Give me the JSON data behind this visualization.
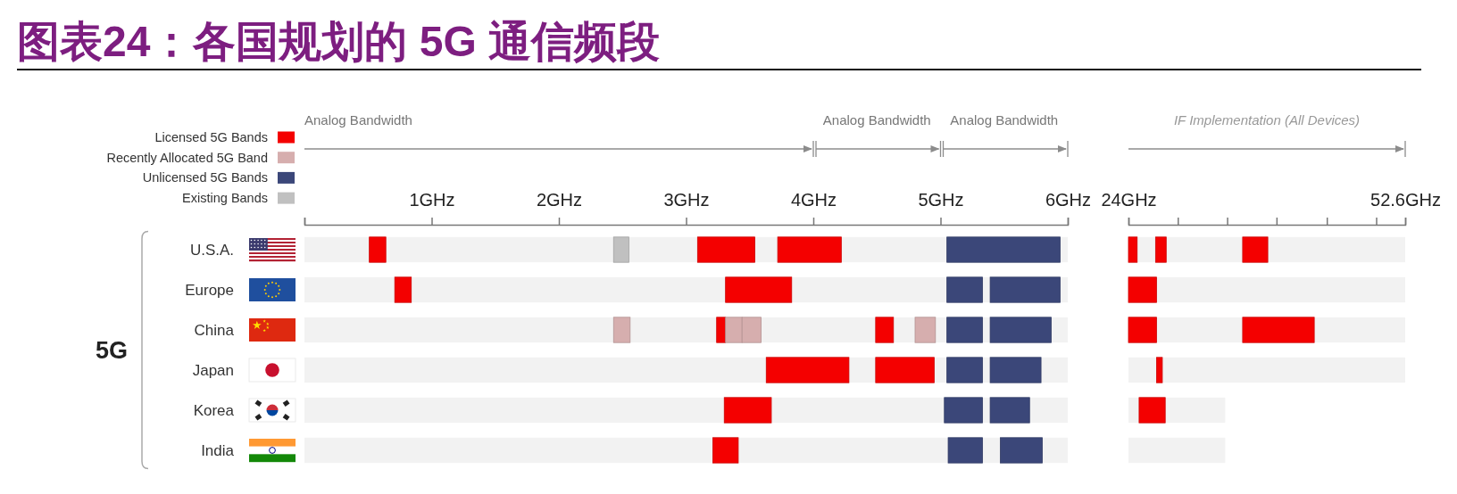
{
  "chart_data": [
    {
      "type": "bar",
      "orientation": "horizontal",
      "title": "图表24：各国规划的 5G 通信频段",
      "ylabel": "5G",
      "categories": [
        "U.S.A.",
        "Europe",
        "China",
        "Japan",
        "Korea",
        "India"
      ],
      "xlim": [
        0,
        6
      ],
      "xticks": [
        {
          "value": 0,
          "label": null
        },
        {
          "value": 1,
          "label": "1GHz"
        },
        {
          "value": 2,
          "label": "2GHz"
        },
        {
          "value": 3,
          "label": "3GHz"
        },
        {
          "value": 4,
          "label": "4GHz"
        },
        {
          "value": 5,
          "label": "5GHz"
        },
        {
          "value": 6,
          "label": "6GHz"
        }
      ],
      "legend": "top left",
      "annotations": [
        "Analog Bandwidth",
        "Analog Bandwidth",
        "Analog Bandwidth"
      ],
      "series": [
        {
          "color": "#f2f2f2",
          "base": [
            0,
            0,
            0,
            0,
            0,
            0
          ],
          "values": [
            6,
            6,
            6,
            6,
            6,
            6
          ]
        },
        {
          "name": "Licensed 5G Bands",
          "color": "#f40000",
          "base": [
            0.51,
            0.71,
            3.24,
            3.63,
            3.3,
            3.21
          ],
          "values": [
            0.13,
            0.13,
            0.07,
            0.65,
            0.37,
            0.2
          ]
        },
        {
          "name": "Recently Allocated 5G Band",
          "color": "#d6aeae",
          "base": [
            null,
            null,
            2.43,
            null,
            null,
            null
          ],
          "values": [
            null,
            null,
            0.13,
            null,
            null,
            null
          ]
        },
        {
          "name": "Unlicensed 5G Bands",
          "color": "#3b4779",
          "base": [
            5.05,
            5.05,
            5.05,
            5.05,
            5.03,
            5.06
          ],
          "values": [
            0.89,
            0.28,
            0.28,
            0.28,
            0.3,
            0.27
          ]
        },
        {
          "name": "Existing Bands",
          "color": "#c0c0c0",
          "base": [
            2.43,
            null,
            null,
            null,
            null,
            null
          ],
          "values": [
            0.12,
            null,
            null,
            null,
            null,
            null
          ]
        },
        {
          "color": "#f40000",
          "base": [
            3.09,
            3.31,
            4.49,
            4.49,
            null,
            null
          ],
          "values": [
            0.45,
            0.52,
            0.14,
            0.46,
            null,
            null
          ]
        },
        {
          "color": "#f40000",
          "base": [
            3.72,
            null,
            null,
            null,
            null,
            null
          ],
          "values": [
            0.5,
            null,
            null,
            null,
            null,
            null
          ]
        },
        {
          "color": "#d6aeae",
          "base": [
            null,
            null,
            3.31,
            null,
            null,
            null
          ],
          "values": [
            null,
            null,
            0.13,
            null,
            null,
            null
          ]
        },
        {
          "color": "#d6aeae",
          "base": [
            null,
            null,
            3.44,
            null,
            null,
            null
          ],
          "values": [
            null,
            null,
            0.15,
            null,
            null,
            null
          ]
        },
        {
          "color": "#d6aeae",
          "base": [
            null,
            null,
            4.8,
            null,
            null,
            null
          ],
          "values": [
            null,
            null,
            0.16,
            null,
            null,
            null
          ]
        },
        {
          "color": "#3b4779",
          "base": [
            null,
            5.39,
            5.39,
            5.39,
            5.39,
            5.47
          ],
          "values": [
            null,
            0.55,
            0.48,
            0.4,
            0.31,
            0.33
          ]
        }
      ]
    },
    {
      "type": "bar",
      "orientation": "horizontal",
      "categories": [
        null,
        null,
        null,
        null,
        null,
        null
      ],
      "tick_labels": "x",
      "xlim": [
        24,
        52.6
      ],
      "xticks": [
        {
          "value": 24,
          "label": "24GHz"
        },
        {
          "value": 29.1,
          "label": null
        },
        {
          "value": 34.2,
          "label": null
        },
        {
          "value": 39.3,
          "label": null
        },
        {
          "value": 44.5,
          "label": null
        },
        {
          "value": 49.6,
          "label": null
        },
        {
          "value": 52.6,
          "label": "52.6GHz"
        }
      ],
      "annotations": [
        "IF Implementation (All Devices)"
      ],
      "series": [
        {
          "color": "#f2f2f2",
          "base": [
            24,
            24,
            24,
            24,
            24,
            24
          ],
          "values": [
            28.6,
            28.6,
            28.6,
            28.6,
            10,
            10
          ]
        },
        {
          "color": "#f40000",
          "base": [
            24,
            24,
            24,
            26.9,
            25.1,
            null
          ],
          "values": [
            0.9,
            2.9,
            2.9,
            0.6,
            2.7,
            null
          ]
        },
        {
          "color": "#f40000",
          "base": [
            26.8,
            null,
            35.8,
            null,
            null,
            null
          ],
          "values": [
            1.1,
            null,
            7.4,
            null,
            null,
            null
          ]
        },
        {
          "color": "#f40000",
          "base": [
            35.8,
            null,
            null,
            null,
            null,
            null
          ],
          "values": [
            2.6,
            null,
            null,
            null,
            null,
            null
          ]
        }
      ]
    }
  ]
}
